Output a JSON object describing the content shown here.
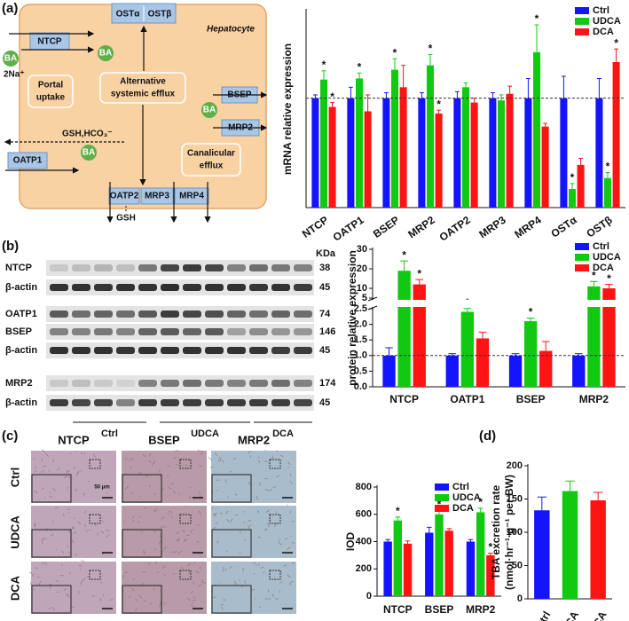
{
  "panel_labels": [
    "(a)",
    "(b)",
    "(c)",
    "(d)"
  ],
  "diagram": {
    "cell": "Hepatocyte",
    "ba": "BA",
    "ntcp": "NTCP",
    "sodium": "2Na⁺",
    "oatp1": "OATP1",
    "gsh_hco3": "GSH,HCO₃⁻",
    "ost_alpha": "OSTα",
    "ost_beta": "OSTβ",
    "bsep": "BSEP",
    "mrp2": "MRP2",
    "oatp2": "OATP2",
    "mrp3": "MRP3",
    "mrp4": "MRP4",
    "gsh": "GSH",
    "portal_uptake": [
      "Portal",
      "uptake"
    ],
    "alternative_efflux": [
      "Alternative",
      "systemic efflux"
    ],
    "canalicular_efflux": [
      "Canalicular",
      "efflux"
    ]
  },
  "blot": {
    "unit": "KDa",
    "rows": [
      {
        "label": "NTCP",
        "kda": 38
      },
      {
        "label": "β-actin",
        "kda": 45
      },
      {
        "label": "OATP1",
        "kda": 74
      },
      {
        "label": "BSEP",
        "kda": 146
      },
      {
        "label": "β-actin",
        "kda": 45
      },
      {
        "label": "MRP2",
        "kda": 174
      },
      {
        "label": "β-actin",
        "kda": 45
      }
    ],
    "groups": [
      "Ctrl",
      "UDCA",
      "DCA"
    ]
  },
  "ihc": {
    "columns": [
      "NTCP",
      "BSEP",
      "MRP2"
    ],
    "rows": [
      "Ctrl",
      "UDCA",
      "DCA"
    ],
    "scale_bar": "50 μm"
  },
  "chart_data": [
    {
      "type": "bar",
      "y_label": "mRNA relative expression",
      "categories": [
        "NTCP",
        "OATP1",
        "BSEP",
        "MRP2",
        "OATP2",
        "MRP3",
        "MRP4",
        "OSTα",
        "OSTβ"
      ],
      "series": [
        {
          "name": "Ctrl",
          "color": "#1414ff",
          "values": [
            1,
            1,
            1,
            1,
            1,
            1,
            1,
            1,
            1
          ],
          "errors": [
            0.03,
            0.1,
            0.05,
            0.05,
            0.06,
            0.05,
            0.18,
            0.2,
            0.18
          ],
          "annotations": [
            null,
            null,
            null,
            null,
            null,
            null,
            null,
            null,
            null
          ]
        },
        {
          "name": "UDCA",
          "color": "#12c912",
          "values": [
            1.17,
            1.18,
            1.26,
            1.3,
            1.1,
            0.98,
            1.42,
            0.17,
            0.27
          ],
          "errors": [
            0.08,
            0.05,
            0.1,
            0.1,
            0.04,
            0.05,
            0.25,
            0.05,
            0.05
          ],
          "annotations": [
            "*",
            "*",
            "*",
            "*",
            null,
            null,
            "*",
            "*",
            "*"
          ]
        },
        {
          "name": "DCA",
          "color": "#ff1414",
          "values": [
            0.92,
            0.88,
            1.1,
            0.86,
            0.96,
            1.04,
            0.74,
            0.39,
            1.33
          ],
          "errors": [
            0.04,
            0.15,
            0.2,
            0.03,
            0.04,
            0.07,
            0.03,
            0.06,
            0.12
          ],
          "annotations": [
            "*",
            null,
            null,
            "*",
            null,
            null,
            null,
            null,
            "*"
          ]
        }
      ],
      "ylim": [
        0,
        1.8
      ],
      "reference_line": 1,
      "legend": "upper right"
    },
    {
      "type": "bar",
      "y_label": "protein relative expression",
      "categories": [
        "NTCP",
        "OATP1",
        "BSEP",
        "MRP2"
      ],
      "series": [
        {
          "name": "Ctrl",
          "color": "#1414ff",
          "values": [
            1,
            1,
            1,
            1
          ],
          "errors": [
            0.25,
            0.06,
            0.06,
            0.06
          ],
          "annotations": [
            null,
            null,
            null,
            null
          ]
        },
        {
          "name": "UDCA",
          "color": "#12c912",
          "values": [
            19,
            2.4,
            2.1,
            11
          ],
          "errors": [
            5,
            0.15,
            0.1,
            2.5
          ],
          "annotations": [
            "*",
            "*",
            "*",
            "*"
          ]
        },
        {
          "name": "DCA",
          "color": "#ff1414",
          "values": [
            12,
            1.55,
            1.15,
            10
          ],
          "errors": [
            2.5,
            0.2,
            0.3,
            2
          ],
          "annotations": [
            "*",
            null,
            null,
            "*"
          ]
        }
      ],
      "ylim": [
        0,
        30
      ],
      "y_break": [
        2.5,
        5
      ],
      "yticks": [
        {
          "value": 0,
          "label": "0.0"
        },
        0.5,
        {
          "value": 1,
          "label": "1.0"
        },
        1.5,
        {
          "value": 2,
          "label": "2.0"
        },
        2.5,
        5,
        10,
        20,
        30
      ],
      "reference_line": 1,
      "legend": "upper right"
    },
    {
      "type": "bar",
      "y_label": "IOD",
      "categories": [
        "NTCP",
        "BSEP",
        "MRP2"
      ],
      "series": [
        {
          "name": "Ctrl",
          "color": "#1414ff",
          "values": [
            400,
            465,
            400
          ],
          "errors": [
            15,
            40,
            15
          ],
          "annotations": [
            null,
            null,
            null
          ]
        },
        {
          "name": "UDCA",
          "color": "#12c912",
          "values": [
            555,
            600,
            615
          ],
          "errors": [
            25,
            30,
            30
          ],
          "annotations": [
            "*",
            "*",
            "*"
          ]
        },
        {
          "name": "DCA",
          "color": "#ff1414",
          "values": [
            385,
            480,
            300
          ],
          "errors": [
            20,
            15,
            15
          ],
          "annotations": [
            null,
            null,
            "*"
          ]
        }
      ],
      "ylim": [
        0,
        800
      ],
      "yticks": [
        0,
        200,
        400,
        600,
        800
      ],
      "legend": "upper right"
    },
    {
      "type": "bar",
      "y_label": [
        "TBA excretion rate",
        "(nmol·hr⁻¹·g⁻¹ per BW)"
      ],
      "categories": [
        "Ctrl",
        "UDCA",
        "DCA"
      ],
      "values": [
        133,
        162,
        148
      ],
      "errors": [
        20,
        15,
        12
      ],
      "colors": [
        "#1414ff",
        "#12c912",
        "#ff1414"
      ],
      "ylim": [
        0,
        200
      ],
      "yticks": [
        0,
        50,
        100,
        150,
        200
      ]
    }
  ]
}
